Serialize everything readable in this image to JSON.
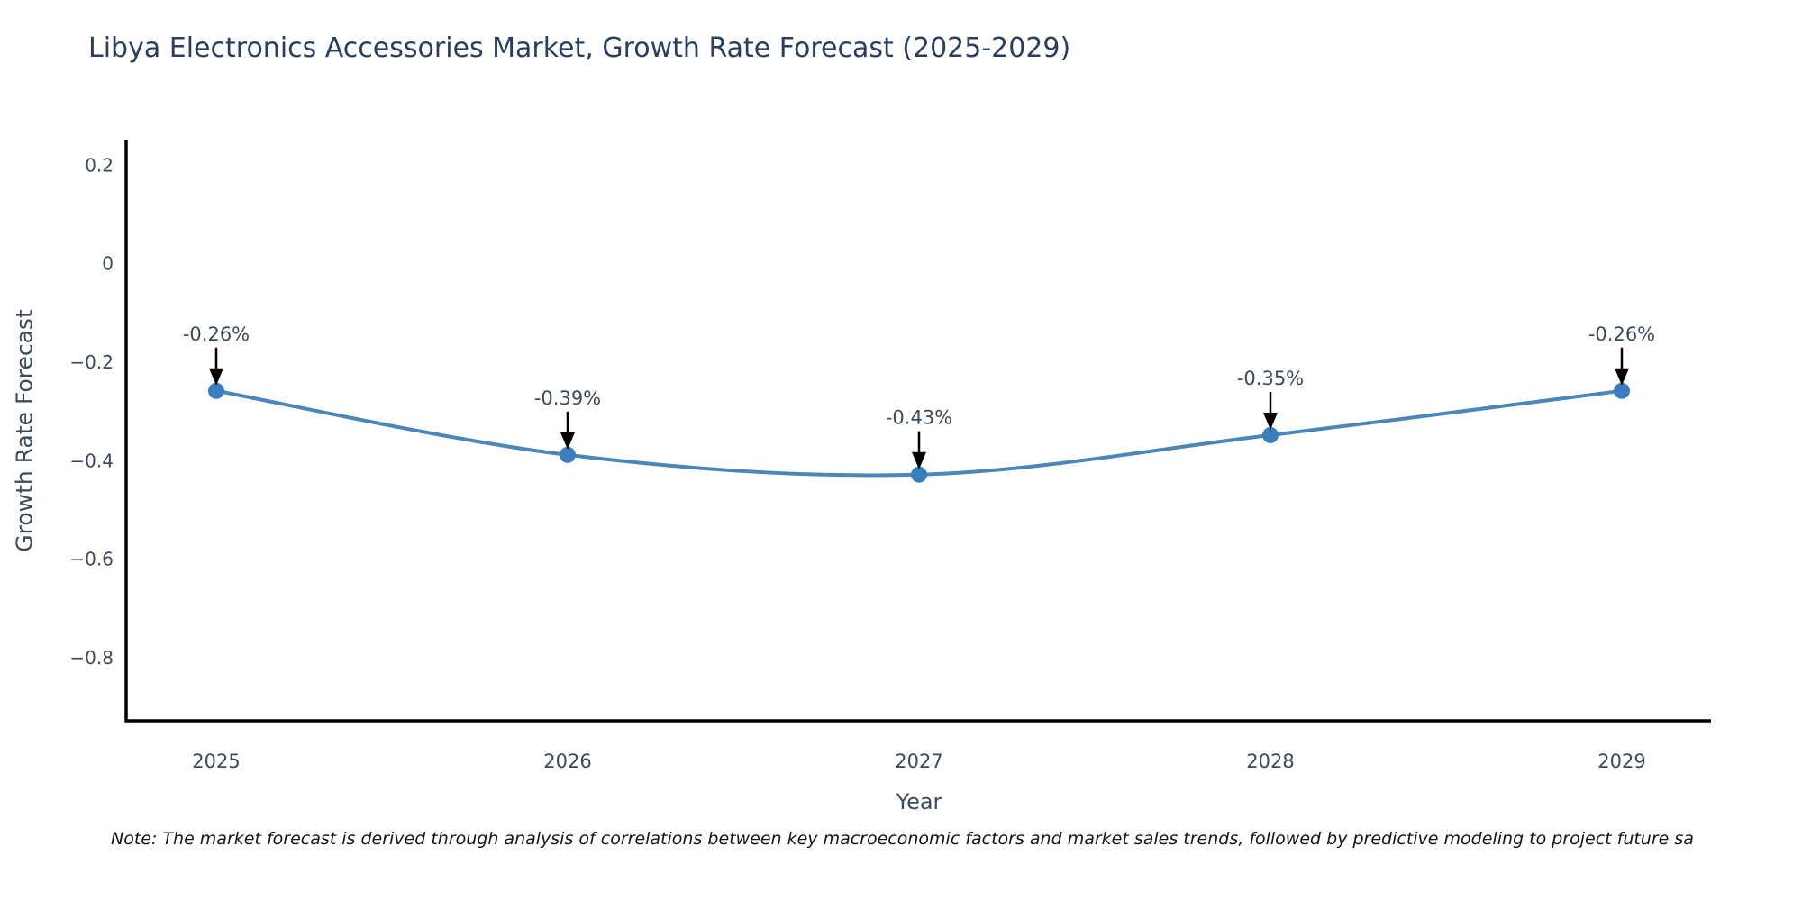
{
  "title": "Libya Electronics Accessories Market, Growth Rate Forecast (2025-2029)",
  "note": "Note: The market forecast is derived through analysis of correlations between key macroeconomic factors and market sales trends, followed by predictive modeling to project future sa",
  "chart_data": {
    "type": "line",
    "title": "Libya Electronics Accessories Market, Growth Rate Forecast (2025-2029)",
    "xlabel": "Year",
    "ylabel": "Growth Rate Forecast",
    "categories": [
      "2025",
      "2026",
      "2027",
      "2028",
      "2029"
    ],
    "series": [
      {
        "name": "Growth Rate Forecast",
        "values": [
          -0.26,
          -0.39,
          -0.43,
          -0.35,
          -0.26
        ],
        "point_labels": [
          "-0.26%",
          "-0.39%",
          "-0.43%",
          "-0.35%",
          "-0.26%"
        ]
      }
    ],
    "yticks": [
      0.2,
      0,
      -0.2,
      -0.4,
      -0.6,
      -0.8
    ],
    "ytick_labels": [
      "0.2",
      "0",
      "−0.2",
      "−0.4",
      "−0.6",
      "−0.8"
    ],
    "ylim": [
      -0.93,
      0.25
    ],
    "line_shape": "spline",
    "grid": false,
    "legend_position": "none",
    "colors": {
      "line": "#4a86b8",
      "marker": "#3a7ebf",
      "axis": "#000000",
      "annotation_arrow": "#000000",
      "annotation_text": "#3d4a5c",
      "tick_text": "#3d4a5c",
      "title_text": "#2a3f5f"
    }
  }
}
